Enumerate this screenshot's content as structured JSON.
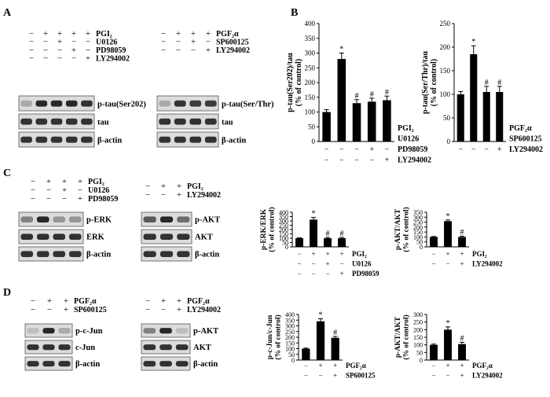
{
  "panels": {
    "A": "A",
    "B": "B",
    "C": "C",
    "D": "D"
  },
  "blots": [
    {
      "cond_rows": [
        [
          "−",
          "+",
          "+",
          "+",
          "+"
        ],
        [
          "−",
          "−",
          "+",
          "−",
          "−"
        ],
        [
          "−",
          "−",
          "−",
          "+",
          "−"
        ],
        [
          "−",
          "−",
          "−",
          "−",
          "+"
        ]
      ],
      "cond_labels": [
        "PGI₂",
        "U0126",
        "PD98059",
        "LY294002"
      ],
      "band_labels": [
        "p-tau(Ser202)",
        "tau",
        "β-actin"
      ],
      "bands": [
        [
          0.3,
          0.95,
          0.95,
          0.95,
          0.9
        ],
        [
          0.9,
          0.9,
          0.9,
          0.9,
          0.9
        ],
        [
          0.9,
          0.9,
          0.9,
          0.9,
          0.9
        ]
      ]
    },
    {
      "cond_rows": [
        [
          "−",
          "+",
          "+",
          "+"
        ],
        [
          "−",
          "−",
          "+",
          "−"
        ],
        [
          "−",
          "−",
          "−",
          "+"
        ]
      ],
      "cond_labels": [
        "PGF₂α",
        "SP600125",
        "LY294002"
      ],
      "band_labels": [
        "p-tau(Ser/Thr)",
        "tau",
        "β-actin"
      ],
      "bands": [
        [
          0.3,
          0.9,
          0.85,
          0.85
        ],
        [
          0.9,
          0.9,
          0.9,
          0.9
        ],
        [
          0.9,
          0.9,
          0.9,
          0.9
        ]
      ]
    },
    {
      "cond_rows": [
        [
          "−",
          "+",
          "+",
          "+"
        ],
        [
          "−",
          "−",
          "+",
          "−"
        ],
        [
          "−",
          "−",
          "−",
          "+"
        ]
      ],
      "cond_labels": [
        "PGI₂",
        "U0126",
        "PD98059"
      ],
      "band_labels": [
        "p-ERK",
        "ERK",
        "β-actin"
      ],
      "bands": [
        [
          0.5,
          0.95,
          0.4,
          0.4
        ],
        [
          0.9,
          0.9,
          0.9,
          0.9
        ],
        [
          0.9,
          0.9,
          0.9,
          0.9
        ]
      ]
    },
    {
      "cond_rows": [
        [
          "−",
          "+",
          "+"
        ],
        [
          "−",
          "−",
          "+"
        ]
      ],
      "cond_labels": [
        "PGI₂",
        "LY294002"
      ],
      "band_labels": [
        "p-AKT",
        "AKT",
        "β-actin"
      ],
      "bands": [
        [
          0.7,
          0.95,
          0.6
        ],
        [
          0.9,
          0.9,
          0.9
        ],
        [
          0.9,
          0.9,
          0.9
        ]
      ]
    },
    {
      "cond_rows": [
        [
          "−",
          "+",
          "+"
        ],
        [
          "−",
          "−",
          "+"
        ]
      ],
      "cond_labels": [
        "PGF₂α",
        "SP600125"
      ],
      "band_labels": [
        "p-c-Jun",
        "c-Jun",
        "β-actin"
      ],
      "bands": [
        [
          0.2,
          0.95,
          0.3
        ],
        [
          0.9,
          0.9,
          0.9
        ],
        [
          0.9,
          0.9,
          0.9
        ]
      ]
    },
    {
      "cond_rows": [
        [
          "−",
          "+",
          "+"
        ],
        [
          "−",
          "−",
          "+"
        ]
      ],
      "cond_labels": [
        "PGF₂α",
        "LY294002"
      ],
      "band_labels": [
        "p-AKT",
        "AKT",
        "β-actin"
      ],
      "bands": [
        [
          0.5,
          0.95,
          0.2
        ],
        [
          0.9,
          0.9,
          0.9
        ],
        [
          0.9,
          0.9,
          0.9
        ]
      ]
    }
  ],
  "chart_data": [
    {
      "type": "bar",
      "ylabel": "p-tau(Ser202)/tau\n(% of control)",
      "ylim": [
        0,
        400
      ],
      "yticks": [
        "0",
        "50",
        "100",
        "150",
        "200",
        "250",
        "300",
        "350",
        "400"
      ],
      "values": [
        100,
        280,
        130,
        135,
        140
      ],
      "errors": [
        8,
        20,
        12,
        12,
        14
      ],
      "marks": [
        "",
        "*",
        "#",
        "#",
        "#"
      ],
      "cond_labels": [
        "PGI₂",
        "U0126",
        "PD98059",
        "LY294002"
      ],
      "cond_rows": [
        [
          "−",
          "+",
          "+",
          "+",
          "+"
        ],
        [
          "−",
          "−",
          "+",
          "−",
          "−"
        ],
        [
          "−",
          "−",
          "−",
          "+",
          "−"
        ],
        [
          "−",
          "−",
          "−",
          "−",
          "+"
        ]
      ]
    },
    {
      "type": "bar",
      "ylabel": "p-tau(Ser/Thr)/tau\n(% of control)",
      "ylim": [
        0,
        250
      ],
      "yticks": [
        "0",
        "50",
        "100",
        "150",
        "200",
        "250"
      ],
      "values": [
        100,
        185,
        105,
        105
      ],
      "errors": [
        6,
        18,
        12,
        12
      ],
      "marks": [
        "",
        "*",
        "#",
        "#"
      ],
      "cond_labels": [
        "PGF₂α",
        "SP600125",
        "LY294002"
      ],
      "cond_rows": [
        [
          "−",
          "+",
          "+",
          "+"
        ],
        [
          "−",
          "−",
          "+",
          "−"
        ],
        [
          "−",
          "−",
          "−",
          "+"
        ]
      ]
    },
    {
      "type": "bar",
      "ylabel": "p-ERK/ERK\n(% of control)",
      "ylim": [
        0,
        400
      ],
      "yticks": [
        "0",
        "50",
        "100",
        "150",
        "200",
        "250",
        "300",
        "350",
        "400"
      ],
      "values": [
        100,
        315,
        100,
        100
      ],
      "errors": [
        6,
        25,
        10,
        10
      ],
      "marks": [
        "",
        "*",
        "#",
        "#"
      ],
      "cond_labels": [
        "PGI₂",
        "U0126",
        "PD98059"
      ],
      "cond_rows": [
        [
          "−",
          "+",
          "+",
          "+"
        ],
        [
          "−",
          "−",
          "+",
          "−"
        ],
        [
          "−",
          "−",
          "−",
          "+"
        ]
      ]
    },
    {
      "type": "bar",
      "ylabel": "p-AKT/AKT\n(% of control)",
      "ylim": [
        0,
        350
      ],
      "yticks": [
        "0",
        "50",
        "100",
        "150",
        "200",
        "250",
        "300",
        "350"
      ],
      "values": [
        100,
        260,
        100
      ],
      "errors": [
        5,
        12,
        8
      ],
      "marks": [
        "",
        "*",
        "#"
      ],
      "cond_labels": [
        "PGI₂",
        "LY294002"
      ],
      "cond_rows": [
        [
          "−",
          "+",
          "+"
        ],
        [
          "−",
          "−",
          "+"
        ]
      ]
    },
    {
      "type": "bar",
      "ylabel": "p-c-Jun/c-Jun\n(% of control)",
      "ylim": [
        0,
        400
      ],
      "yticks": [
        "0",
        "50",
        "100",
        "150",
        "200",
        "250",
        "300",
        "350",
        "400"
      ],
      "values": [
        100,
        340,
        195
      ],
      "errors": [
        5,
        22,
        12
      ],
      "marks": [
        "",
        "*",
        "#"
      ],
      "cond_labels": [
        "PGF₂α",
        "SP600125"
      ],
      "cond_rows": [
        [
          "−",
          "+",
          "+"
        ],
        [
          "−",
          "−",
          "+"
        ]
      ]
    },
    {
      "type": "bar",
      "ylabel": "p-AKT/AKT\n(% of control)",
      "ylim": [
        0,
        300
      ],
      "yticks": [
        "0",
        "50",
        "100",
        "150",
        "200",
        "250",
        "300"
      ],
      "values": [
        100,
        200,
        105
      ],
      "errors": [
        5,
        18,
        12
      ],
      "marks": [
        "",
        "*",
        "#"
      ],
      "cond_labels": [
        "PGF₂α",
        "LY294002"
      ],
      "cond_rows": [
        [
          "−",
          "+",
          "+"
        ],
        [
          "−",
          "−",
          "+"
        ]
      ]
    }
  ]
}
